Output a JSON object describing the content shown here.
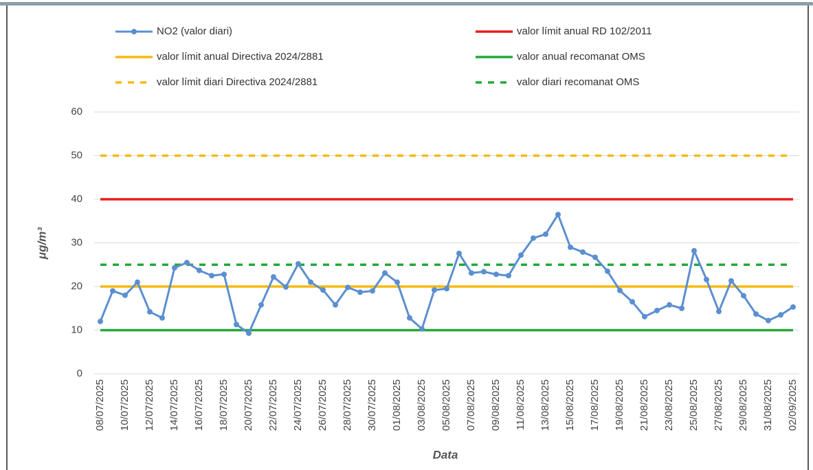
{
  "chart_data": {
    "type": "line",
    "xlabel": "Data",
    "ylabel": "μg/m³",
    "categories": [
      "08/07/2025",
      null,
      "10/07/2025",
      null,
      "12/07/2025",
      null,
      "14/07/2025",
      null,
      "16/07/2025",
      null,
      "18/07/2025",
      null,
      "20/07/2025",
      null,
      "22/07/2025",
      null,
      "24/07/2025",
      null,
      "26/07/2025",
      null,
      "28/07/2025",
      null,
      "30/07/2025",
      null,
      "01/08/2025",
      null,
      "03/08/2025",
      null,
      "05/08/2025",
      null,
      "07/08/2025",
      null,
      "09/08/2025",
      null,
      "11/08/2025",
      null,
      "13/08/2025",
      null,
      "15/08/2025",
      null,
      "17/08/2025",
      null,
      "19/08/2025",
      null,
      "21/08/2025",
      null,
      "23/08/2025",
      null,
      "25/08/2025",
      null,
      "27/08/2025",
      null,
      "29/08/2025",
      null,
      "31/08/2025",
      null,
      "02/09/2025"
    ],
    "series": [
      {
        "name": "NO2 (valor diari)",
        "color": "#5b8fd0",
        "values": [
          12,
          19,
          18,
          21,
          14.2,
          12.8,
          24.3,
          25.5,
          23.7,
          22.5,
          22.8,
          11.3,
          9.3,
          15.8,
          22.2,
          19.9,
          25.2,
          21,
          19.2,
          15.8,
          19.8,
          18.7,
          19,
          23.1,
          21,
          12.8,
          10.3,
          19.2,
          19.5,
          27.6,
          23.1,
          23.4,
          22.8,
          22.5,
          27.2,
          31.1,
          32,
          36.5,
          29,
          27.9,
          26.7,
          23.5,
          19.1,
          16.5,
          13.1,
          14.5,
          15.8,
          15,
          28.2,
          21.6,
          14.3,
          21.3,
          17.9,
          13.7,
          12.2,
          13.5,
          15.3
        ]
      }
    ],
    "reference_lines": [
      {
        "name": "valor límit anual RD 102/2011",
        "value": 40,
        "color": "#e81c1c",
        "dashed": false
      },
      {
        "name": "valor límit anual Directiva 2024/2881",
        "value": 20,
        "color": "#f5b90f",
        "dashed": false
      },
      {
        "name": "valor anual recomanat OMS",
        "value": 10,
        "color": "#22a83a",
        "dashed": false
      },
      {
        "name": "valor límit diari Directiva 2024/2881",
        "value": 50,
        "color": "#f5b90f",
        "dashed": true
      },
      {
        "name": "valor diari recomanat OMS",
        "value": 25,
        "color": "#22a83a",
        "dashed": true
      }
    ],
    "ylim": [
      0,
      60
    ],
    "yticks": [
      0,
      10,
      20,
      30,
      40,
      50,
      60
    ],
    "grid": true
  }
}
